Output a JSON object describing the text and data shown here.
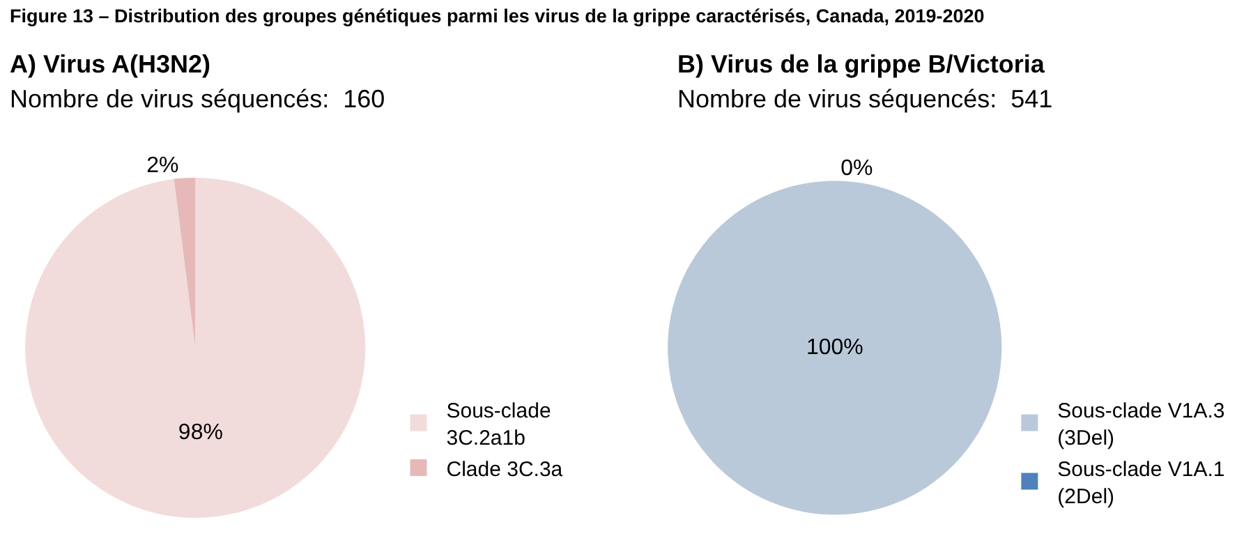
{
  "chart_data": [
    {
      "type": "pie",
      "title": "Figure 13 – Distribution des groupes génétiques parmi les virus de la grippe caractérisés, Canada, 2019-2020",
      "subtitle": "A) Virus A(H3N2)",
      "annotations": [
        "Nombre de virus séquencés:  160"
      ],
      "categories": [
        "Sous-clade 3C.2a1b",
        "Clade 3C.3a"
      ],
      "values": [
        98,
        2
      ],
      "colors": [
        "#f2dcdb",
        "#e6b9b8"
      ],
      "value_labels": [
        "98%",
        "2%"
      ],
      "legend": "right"
    },
    {
      "type": "pie",
      "subtitle": "B) Virus de la grippe B/Victoria",
      "annotations": [
        "Nombre de virus séquencés:  541"
      ],
      "categories": [
        "Sous-clade V1A.3 (3Del)",
        "Sous-clade V1A.1 (2Del)"
      ],
      "values": [
        100,
        0
      ],
      "colors": [
        "#b9c9da",
        "#4f81bd"
      ],
      "value_labels": [
        "100%",
        "0%"
      ],
      "legend": "right"
    }
  ]
}
